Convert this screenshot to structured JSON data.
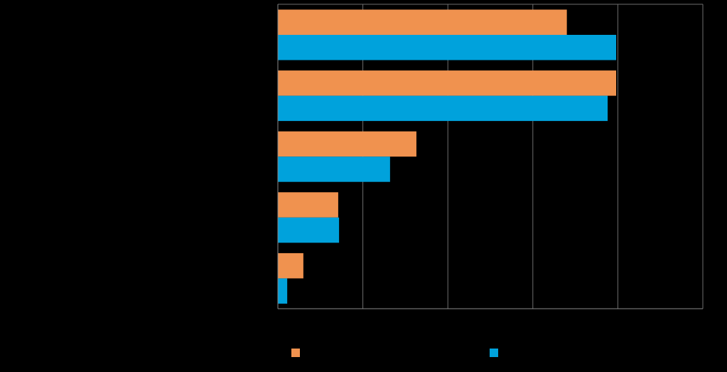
{
  "chart_data": {
    "type": "bar",
    "orientation": "horizontal",
    "categories": [
      "",
      "",
      "",
      "",
      ""
    ],
    "xlim": [
      0,
      50
    ],
    "gridlines_x": [
      10,
      20,
      30,
      40,
      50
    ],
    "grid": true,
    "legend_position": "bottom",
    "series": [
      {
        "color": "#F0924F",
        "values": [
          34,
          39.8,
          16.3,
          7.1,
          3.0
        ]
      },
      {
        "color": "#00A2DC",
        "values": [
          39.8,
          38.8,
          13.2,
          7.2,
          1.1
        ]
      }
    ]
  }
}
